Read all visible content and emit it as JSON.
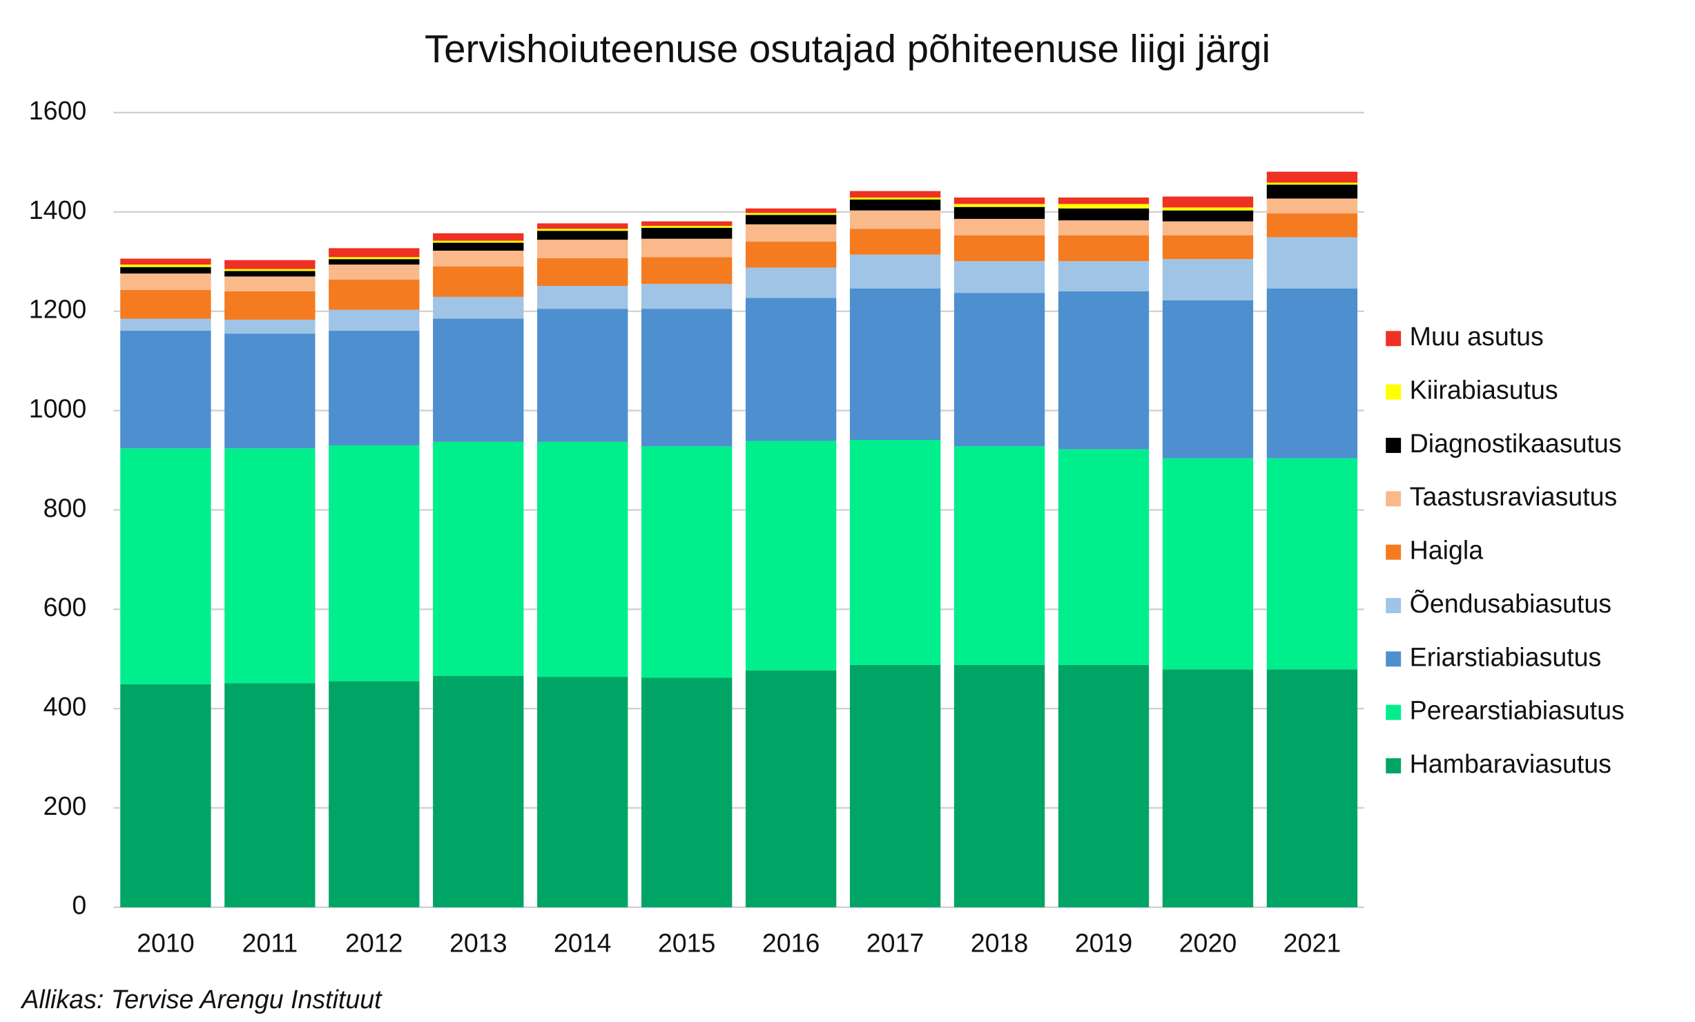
{
  "chart_data": {
    "type": "stacked_bar",
    "title": "Tervishoiuteenuse osutajad põhiteenuse liigi järgi",
    "source": "Allikas: Tervise Arengu Instituut",
    "categories": [
      "2010",
      "2011",
      "2012",
      "2013",
      "2014",
      "2015",
      "2016",
      "2017",
      "2018",
      "2019",
      "2020",
      "2021"
    ],
    "ylim": [
      0,
      1600
    ],
    "yticks": [
      0,
      200,
      400,
      600,
      800,
      1000,
      1200,
      1400,
      1600
    ],
    "grid": true,
    "legend": "right",
    "series": [
      {
        "name": "Hambaraviasutus",
        "color": "#00a566",
        "values": [
          449,
          451,
          455,
          466,
          464,
          462,
          477,
          488,
          488,
          488,
          479,
          479
        ]
      },
      {
        "name": "Perearstiabiasutus",
        "color": "#00ef8c",
        "values": [
          475,
          473,
          475,
          471,
          473,
          466,
          462,
          453,
          440,
          434,
          425,
          425
        ]
      },
      {
        "name": "Eriarstiabiasutus",
        "color": "#4e8fcf",
        "values": [
          237,
          231,
          231,
          248,
          268,
          277,
          288,
          305,
          309,
          318,
          318,
          342
        ]
      },
      {
        "name": "Õendusabiasutus",
        "color": "#9fc4e6",
        "values": [
          24,
          28,
          42,
          44,
          46,
          50,
          61,
          68,
          64,
          61,
          83,
          103
        ]
      },
      {
        "name": "Haigla",
        "color": "#f47b20",
        "values": [
          58,
          57,
          61,
          61,
          56,
          54,
          52,
          52,
          52,
          52,
          48,
          48
        ]
      },
      {
        "name": "Taastusraviasutus",
        "color": "#f9b98b",
        "values": [
          33,
          30,
          30,
          32,
          37,
          37,
          35,
          37,
          33,
          30,
          28,
          30
        ]
      },
      {
        "name": "Diagnostikaasutus",
        "color": "#000000",
        "values": [
          13,
          11,
          11,
          16,
          18,
          22,
          19,
          22,
          24,
          24,
          22,
          28
        ]
      },
      {
        "name": "Kiirabiasutus",
        "color": "#ffff00",
        "values": [
          5,
          4,
          4,
          4,
          4,
          4,
          4,
          4,
          6,
          9,
          6,
          4
        ]
      },
      {
        "name": "Muu asutus",
        "color": "#ee3124",
        "values": [
          12,
          18,
          18,
          15,
          11,
          9,
          9,
          13,
          13,
          13,
          22,
          22
        ]
      }
    ]
  }
}
